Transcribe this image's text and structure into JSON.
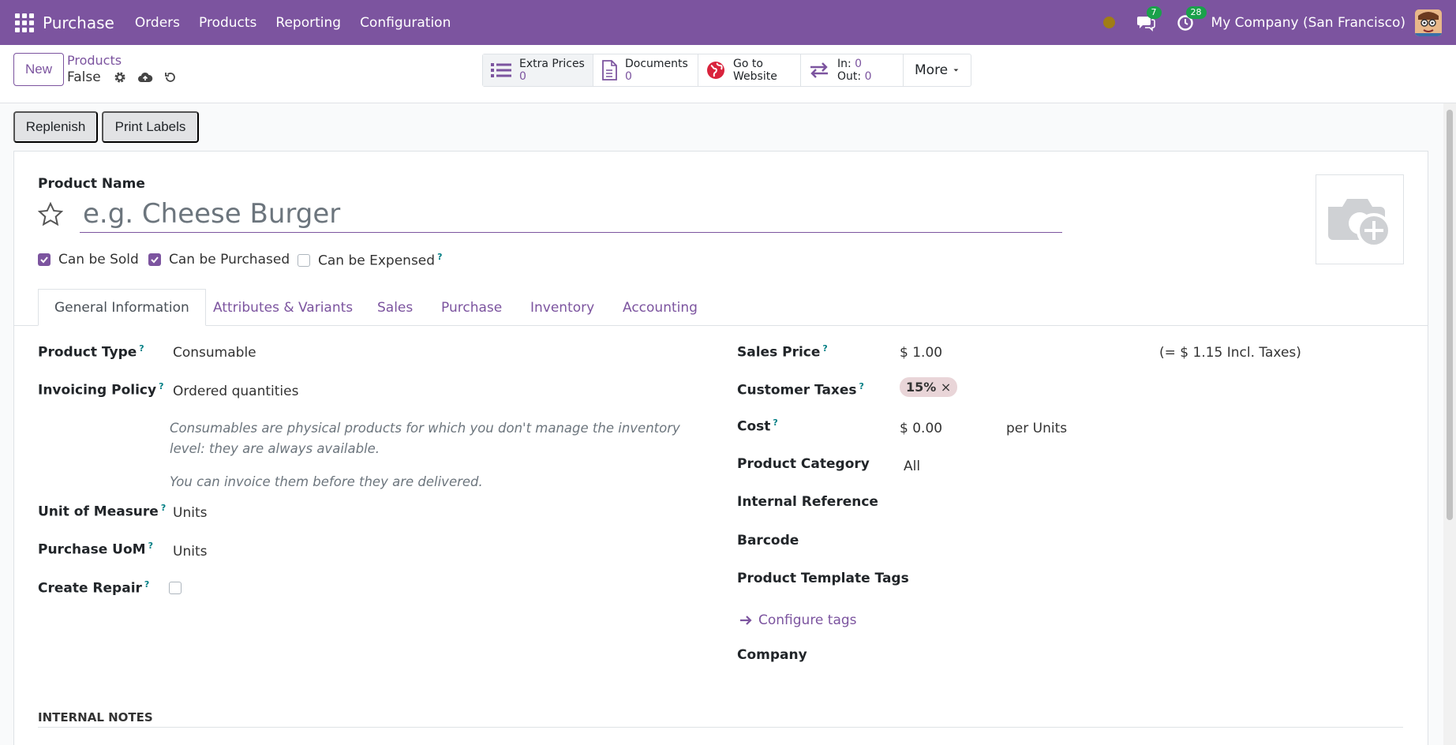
{
  "navbar": {
    "app_name": "Purchase",
    "menus": [
      "Orders",
      "Products",
      "Reporting",
      "Configuration"
    ],
    "messages_count": "7",
    "activities_count": "28",
    "company": "My Company (San Francisco)",
    "bg_color": "#7c549f"
  },
  "control": {
    "new_label": "New",
    "breadcrumb_parent": "Products",
    "record_name": "False",
    "smart_buttons": {
      "extra_prices": {
        "label": "Extra Prices",
        "value": "0"
      },
      "documents": {
        "label": "Documents",
        "value": "0"
      },
      "website": {
        "line1": "Go to",
        "line2": "Website"
      },
      "inout": {
        "in_label": "In:",
        "in_value": "0",
        "out_label": "Out:",
        "out_value": "0"
      }
    },
    "more_label": "More"
  },
  "actions": {
    "replenish": "Replenish",
    "print_labels": "Print Labels"
  },
  "form": {
    "product_name_label": "Product Name",
    "product_name_placeholder": "e.g. Cheese Burger",
    "checkboxes": {
      "can_be_sold": "Can be Sold",
      "can_be_purchased": "Can be Purchased",
      "can_be_expensed": "Can be Expensed"
    },
    "tabs": [
      "General Information",
      "Attributes & Variants",
      "Sales",
      "Purchase",
      "Inventory",
      "Accounting"
    ],
    "left": {
      "product_type_label": "Product Type",
      "product_type_value": "Consumable",
      "invoicing_policy_label": "Invoicing Policy",
      "invoicing_policy_value": "Ordered quantities",
      "note1": "Consumables are physical products for which you don't manage the inventory level: they are always available.",
      "note2": "You can invoice them before they are delivered.",
      "uom_label": "Unit of Measure",
      "uom_value": "Units",
      "purchase_uom_label": "Purchase UoM",
      "purchase_uom_value": "Units",
      "create_repair_label": "Create Repair"
    },
    "right": {
      "sales_price_label": "Sales Price",
      "sales_price_value": "$ 1.00",
      "incl_taxes": "(= $ 1.15 Incl. Taxes)",
      "customer_taxes_label": "Customer Taxes",
      "tax_tag": "15%",
      "cost_label": "Cost",
      "cost_value": "$ 0.00",
      "cost_unit": "per Units",
      "category_label": "Product Category",
      "category_value": "All",
      "internal_ref_label": "Internal Reference",
      "barcode_label": "Barcode",
      "tags_label": "Product Template Tags",
      "configure_tags": "Configure tags",
      "company_label": "Company"
    },
    "internal_notes": "INTERNAL NOTES"
  },
  "help_mark": "?"
}
